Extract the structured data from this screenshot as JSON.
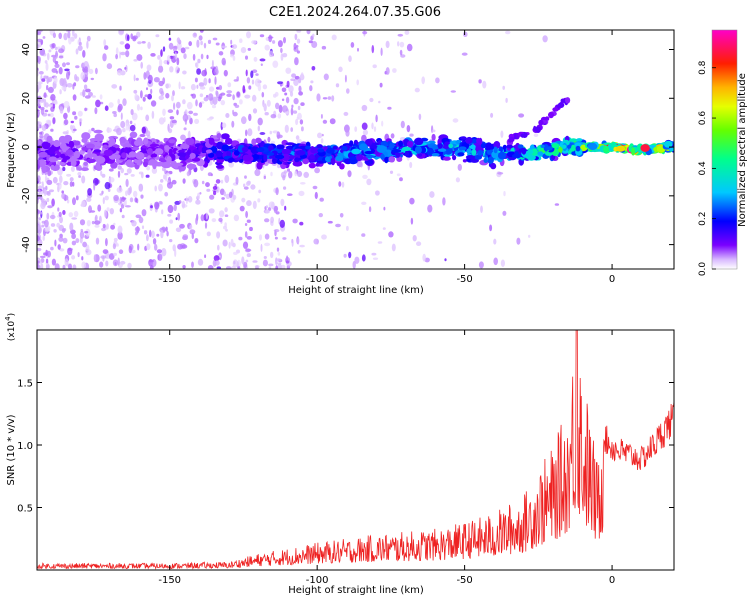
{
  "title": "C2E1.2024.264.07.35.G06",
  "chart_data": [
    {
      "type": "heatmap",
      "xlabel": "Height of straight line (km)",
      "ylabel": "Frequency (Hz)",
      "xlim": [
        -195,
        21
      ],
      "ylim": [
        -50,
        48
      ],
      "x_ticks": [
        -150,
        -100,
        -50,
        0
      ],
      "x_tick_labels": [
        "-150",
        "-100",
        "-50",
        "0"
      ],
      "y_ticks": [
        -40,
        -20,
        0,
        20,
        40
      ],
      "y_tick_labels": [
        "-40",
        "-20",
        "0",
        "20",
        "40"
      ],
      "colorbar": {
        "label": "Normalized spectral amplitude",
        "range": [
          0,
          0.95
        ],
        "ticks": [
          0.0,
          0.2,
          0.4,
          0.6,
          0.8
        ],
        "tick_labels": [
          "0.0",
          "0.2",
          "0.4",
          "0.6",
          "0.8"
        ],
        "colormap": [
          "#ffffff",
          "#7a00ff",
          "#0000ff",
          "#00c8ff",
          "#00ff6a",
          "#c8ff00",
          "#ffd000",
          "#ff5a00",
          "#ff0000",
          "#ff00c8"
        ]
      },
      "ridge": {
        "description_points_x": [
          -195,
          -150,
          -130,
          -100,
          -75,
          -50,
          -40,
          -25,
          -15,
          -5,
          0,
          10,
          21
        ],
        "center_freq": [
          -2,
          -2,
          -2,
          -3,
          -1,
          0,
          -3,
          -2,
          0,
          0,
          0,
          -1,
          0
        ],
        "amplitude": [
          0.12,
          0.1,
          0.22,
          0.28,
          0.32,
          0.35,
          0.35,
          0.45,
          0.5,
          0.7,
          0.9,
          0.88,
          0.55
        ]
      },
      "drift_branch": {
        "x": [
          -35,
          -30,
          -25,
          -20,
          -15
        ],
        "freq": [
          3,
          5,
          8,
          14,
          20
        ]
      },
      "grid": false
    },
    {
      "type": "line",
      "xlabel": "Height of straight line (km)",
      "ylabel": "SNR (10 * v/v)",
      "y_multiplier_label": "(x10",
      "y_multiplier_exp": "4",
      "y_multiplier_close": ")",
      "xlim": [
        -195,
        21
      ],
      "ylim": [
        0,
        1.92
      ],
      "x_ticks": [
        -150,
        -100,
        -50,
        0
      ],
      "x_tick_labels": [
        "-150",
        "-100",
        "-50",
        "0"
      ],
      "y_ticks": [
        0.5,
        1.0,
        1.5
      ],
      "y_tick_labels": [
        "0.5",
        "1.0",
        "1.5"
      ],
      "series": [
        {
          "color": "#ee2222",
          "envelope_x": [
            -195,
            -150,
            -130,
            -120,
            -100,
            -80,
            -60,
            -50,
            -40,
            -30,
            -25,
            -20,
            -15,
            -12,
            -10,
            -8,
            -5,
            -3,
            0,
            5,
            10,
            15,
            21
          ],
          "envelope_y": [
            0.05,
            0.05,
            0.06,
            0.12,
            0.2,
            0.26,
            0.3,
            0.35,
            0.42,
            0.55,
            0.75,
            0.9,
            1.2,
            1.9,
            1.5,
            1.2,
            0.8,
            1.15,
            1.05,
            1.0,
            0.95,
            1.1,
            1.32
          ]
        }
      ],
      "grid": false
    }
  ]
}
